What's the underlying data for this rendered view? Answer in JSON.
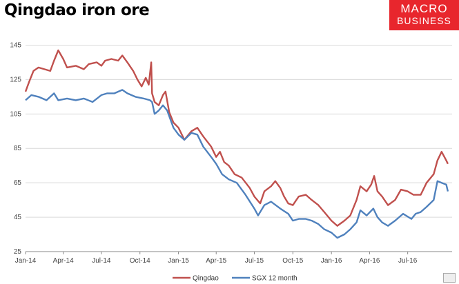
{
  "chart_data": {
    "type": "line",
    "title": "Qingdao iron ore",
    "logo": {
      "line1": "MACRO",
      "line2": "BUSINESS"
    },
    "x_ticks": [
      "Jan-14",
      "Apr-14",
      "Jul-14",
      "Oct-14",
      "Jan-15",
      "Apr-15",
      "Jul-15",
      "Oct-15",
      "Jan-16",
      "Apr-16",
      "Jul-16"
    ],
    "y_ticks": [
      25,
      45,
      65,
      85,
      105,
      125,
      145
    ],
    "ylim": [
      25,
      148
    ],
    "xlim": [
      "2014-01-01",
      "2016-10-15"
    ],
    "grid": true,
    "legend_position": "bottom",
    "colors": {
      "qingdao": "#c0504d",
      "sgx": "#4f81bd"
    },
    "series": [
      {
        "name": "Qingdao",
        "color": "#c0504d",
        "points": [
          [
            "2014-01-01",
            118
          ],
          [
            "2014-01-10",
            124
          ],
          [
            "2014-01-20",
            130
          ],
          [
            "2014-02-01",
            132
          ],
          [
            "2014-02-15",
            131
          ],
          [
            "2014-03-01",
            130
          ],
          [
            "2014-03-10",
            136
          ],
          [
            "2014-03-20",
            142
          ],
          [
            "2014-04-01",
            137
          ],
          [
            "2014-04-10",
            132
          ],
          [
            "2014-05-01",
            133
          ],
          [
            "2014-05-20",
            131
          ],
          [
            "2014-06-01",
            134
          ],
          [
            "2014-06-20",
            135
          ],
          [
            "2014-07-01",
            133
          ],
          [
            "2014-07-10",
            136
          ],
          [
            "2014-07-25",
            137
          ],
          [
            "2014-08-10",
            136
          ],
          [
            "2014-08-20",
            139
          ],
          [
            "2014-09-01",
            135
          ],
          [
            "2014-09-15",
            130
          ],
          [
            "2014-09-25",
            125
          ],
          [
            "2014-10-05",
            121
          ],
          [
            "2014-10-15",
            126
          ],
          [
            "2014-10-22",
            122
          ],
          [
            "2014-10-28",
            135
          ],
          [
            "2014-10-30",
            117
          ],
          [
            "2014-11-05",
            112
          ],
          [
            "2014-11-15",
            110
          ],
          [
            "2014-11-25",
            116
          ],
          [
            "2014-12-01",
            118
          ],
          [
            "2014-12-10",
            106
          ],
          [
            "2014-12-20",
            100
          ],
          [
            "2015-01-01",
            97
          ],
          [
            "2015-01-15",
            90
          ],
          [
            "2015-02-01",
            95
          ],
          [
            "2015-02-15",
            97
          ],
          [
            "2015-03-01",
            92
          ],
          [
            "2015-03-20",
            86
          ],
          [
            "2015-04-01",
            80
          ],
          [
            "2015-04-10",
            83
          ],
          [
            "2015-04-20",
            77
          ],
          [
            "2015-05-01",
            75
          ],
          [
            "2015-05-15",
            70
          ],
          [
            "2015-06-01",
            68
          ],
          [
            "2015-06-20",
            62
          ],
          [
            "2015-07-01",
            57
          ],
          [
            "2015-07-15",
            53
          ],
          [
            "2015-07-25",
            60
          ],
          [
            "2015-08-10",
            63
          ],
          [
            "2015-08-20",
            66
          ],
          [
            "2015-09-01",
            62
          ],
          [
            "2015-09-10",
            57
          ],
          [
            "2015-09-20",
            53
          ],
          [
            "2015-10-01",
            52
          ],
          [
            "2015-10-15",
            57
          ],
          [
            "2015-11-01",
            58
          ],
          [
            "2015-11-15",
            55
          ],
          [
            "2015-12-01",
            52
          ],
          [
            "2015-12-15",
            48
          ],
          [
            "2016-01-01",
            43
          ],
          [
            "2016-01-15",
            40
          ],
          [
            "2016-02-01",
            43
          ],
          [
            "2016-02-15",
            46
          ],
          [
            "2016-03-01",
            55
          ],
          [
            "2016-03-10",
            63
          ],
          [
            "2016-03-25",
            60
          ],
          [
            "2016-04-05",
            64
          ],
          [
            "2016-04-12",
            69
          ],
          [
            "2016-04-20",
            60
          ],
          [
            "2016-05-01",
            57
          ],
          [
            "2016-05-15",
            52
          ],
          [
            "2016-06-01",
            55
          ],
          [
            "2016-06-15",
            61
          ],
          [
            "2016-07-01",
            60
          ],
          [
            "2016-07-15",
            58
          ],
          [
            "2016-08-01",
            58
          ],
          [
            "2016-08-15",
            65
          ],
          [
            "2016-09-01",
            70
          ],
          [
            "2016-09-10",
            78
          ],
          [
            "2016-09-20",
            83
          ],
          [
            "2016-10-01",
            78
          ],
          [
            "2016-10-05",
            76
          ]
        ]
      },
      {
        "name": "SGX 12 month",
        "color": "#4f81bd",
        "points": [
          [
            "2014-01-01",
            113
          ],
          [
            "2014-01-15",
            116
          ],
          [
            "2014-02-01",
            115
          ],
          [
            "2014-02-20",
            113
          ],
          [
            "2014-03-10",
            117
          ],
          [
            "2014-03-20",
            113
          ],
          [
            "2014-04-10",
            114
          ],
          [
            "2014-05-01",
            113
          ],
          [
            "2014-05-20",
            114
          ],
          [
            "2014-06-10",
            112
          ],
          [
            "2014-07-01",
            116
          ],
          [
            "2014-07-15",
            117
          ],
          [
            "2014-08-01",
            117
          ],
          [
            "2014-08-20",
            119
          ],
          [
            "2014-09-01",
            117
          ],
          [
            "2014-09-20",
            115
          ],
          [
            "2014-10-10",
            114
          ],
          [
            "2014-10-25",
            113
          ],
          [
            "2014-10-30",
            112
          ],
          [
            "2014-11-05",
            105
          ],
          [
            "2014-11-15",
            107
          ],
          [
            "2014-11-25",
            110
          ],
          [
            "2014-12-05",
            107
          ],
          [
            "2014-12-20",
            97
          ],
          [
            "2015-01-01",
            93
          ],
          [
            "2015-01-15",
            90
          ],
          [
            "2015-02-01",
            94
          ],
          [
            "2015-02-15",
            93
          ],
          [
            "2015-03-01",
            86
          ],
          [
            "2015-03-20",
            80
          ],
          [
            "2015-04-01",
            76
          ],
          [
            "2015-04-15",
            70
          ],
          [
            "2015-05-01",
            67
          ],
          [
            "2015-05-20",
            65
          ],
          [
            "2015-06-10",
            58
          ],
          [
            "2015-07-01",
            50
          ],
          [
            "2015-07-10",
            46
          ],
          [
            "2015-07-25",
            52
          ],
          [
            "2015-08-10",
            54
          ],
          [
            "2015-09-01",
            50
          ],
          [
            "2015-09-20",
            47
          ],
          [
            "2015-10-01",
            43
          ],
          [
            "2015-10-15",
            44
          ],
          [
            "2015-11-01",
            44
          ],
          [
            "2015-11-15",
            43
          ],
          [
            "2015-12-01",
            41
          ],
          [
            "2015-12-15",
            38
          ],
          [
            "2016-01-01",
            36
          ],
          [
            "2016-01-15",
            33
          ],
          [
            "2016-02-01",
            35
          ],
          [
            "2016-02-15",
            38
          ],
          [
            "2016-03-01",
            42
          ],
          [
            "2016-03-10",
            49
          ],
          [
            "2016-03-25",
            46
          ],
          [
            "2016-04-10",
            50
          ],
          [
            "2016-04-20",
            45
          ],
          [
            "2016-05-01",
            42
          ],
          [
            "2016-05-15",
            40
          ],
          [
            "2016-06-01",
            43
          ],
          [
            "2016-06-20",
            47
          ],
          [
            "2016-07-10",
            44
          ],
          [
            "2016-07-20",
            47
          ],
          [
            "2016-08-01",
            48
          ],
          [
            "2016-08-15",
            51
          ],
          [
            "2016-09-01",
            55
          ],
          [
            "2016-09-10",
            66
          ],
          [
            "2016-09-20",
            65
          ],
          [
            "2016-10-01",
            64
          ],
          [
            "2016-10-05",
            60
          ]
        ]
      }
    ]
  }
}
